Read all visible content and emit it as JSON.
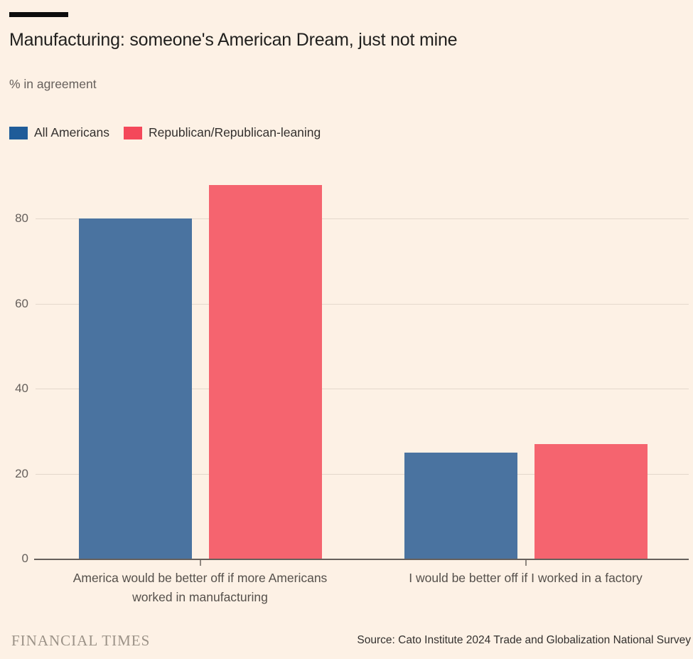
{
  "header": {
    "accent_bar_color": "#0D0D0D"
  },
  "chart_data": {
    "type": "bar",
    "title": "Manufacturing: someone's American Dream, just not mine",
    "subtitle": "% in agreement",
    "categories": [
      "America would be better off if more Americans worked in manufacturing",
      "I would be better off if I worked in a factory"
    ],
    "series": [
      {
        "name": "All Americans",
        "values": [
          80,
          25
        ],
        "bar_color": "#4A73A0",
        "legend_color": "#1F5C99"
      },
      {
        "name": "Republican/Republican-leaning",
        "values": [
          88,
          27
        ],
        "bar_color": "#F5646F",
        "legend_color": "#F4485A"
      }
    ],
    "xlabel": "",
    "ylabel": "% in agreement",
    "yticks": [
      0,
      20,
      40,
      60,
      80
    ],
    "ylim": [
      0,
      90
    ],
    "grid": true,
    "legend_position": "top-left"
  },
  "colors": {
    "background": "#FDF1E5",
    "gridline": "#E4D8CC",
    "baseline": "#66605C",
    "tick_mark": "#8F8780",
    "tick_label": "#66605C",
    "category_label": "#55504B"
  },
  "footer": {
    "brand": "FINANCIAL TIMES",
    "source": "Source: Cato Institute 2024 Trade and Globalization National Survey"
  }
}
